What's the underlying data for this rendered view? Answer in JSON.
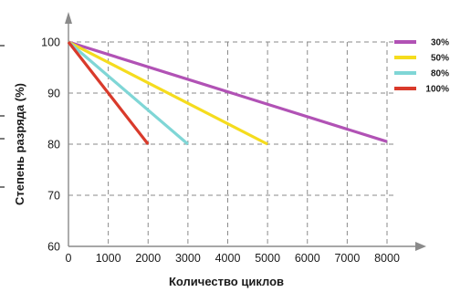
{
  "chart_data": {
    "type": "line",
    "title": "",
    "xlabel": "Количество циклов",
    "ylabel": "Степень разряда (%)",
    "xlim": [
      0,
      8000
    ],
    "ylim": [
      60,
      100
    ],
    "x_ticks": [
      0,
      1000,
      2000,
      3000,
      4000,
      5000,
      6000,
      7000,
      8000
    ],
    "y_ticks": [
      60,
      70,
      80,
      90,
      100
    ],
    "grid": true,
    "legend_position": "top-right",
    "series": [
      {
        "name": "30%",
        "color": "#b152b5",
        "points": [
          [
            0,
            100
          ],
          [
            8000,
            80.5
          ]
        ]
      },
      {
        "name": "50%",
        "color": "#f5dc1e",
        "points": [
          [
            0,
            100
          ],
          [
            5000,
            80
          ]
        ]
      },
      {
        "name": "80%",
        "color": "#7fd6d6",
        "points": [
          [
            0,
            100
          ],
          [
            3000,
            80
          ]
        ]
      },
      {
        "name": "100%",
        "color": "#d93a2b",
        "points": [
          [
            0,
            100
          ],
          [
            2000,
            80
          ]
        ]
      }
    ]
  }
}
